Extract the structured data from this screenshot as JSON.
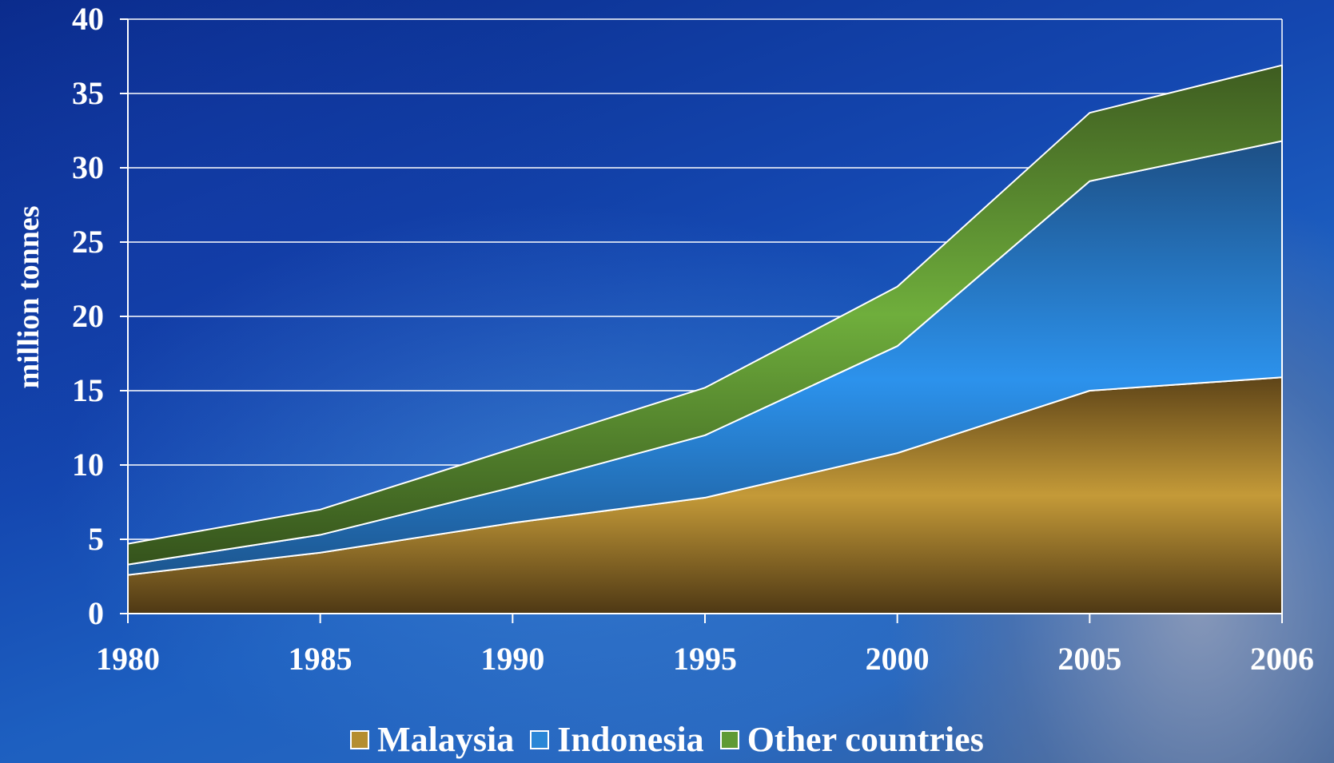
{
  "chart_data": {
    "type": "area",
    "stacked": true,
    "x": [
      "1980",
      "1985",
      "1990",
      "1995",
      "2000",
      "2005",
      "2006"
    ],
    "ylabel": "million tonnes",
    "xlabel": "",
    "title": "",
    "ylim": [
      0,
      40
    ],
    "yticks": [
      "0",
      "5",
      "10",
      "15",
      "20",
      "25",
      "30",
      "35",
      "40"
    ],
    "grid": true,
    "legend_position": "bottom",
    "series": [
      {
        "name": "Malaysia",
        "values": [
          2.6,
          4.1,
          6.1,
          7.8,
          10.8,
          15.0,
          15.9
        ],
        "color": "#b58e30"
      },
      {
        "name": "Indonesia",
        "values": [
          0.7,
          1.2,
          2.4,
          4.2,
          7.2,
          14.1,
          15.9
        ],
        "color": "#2a86d6"
      },
      {
        "name": "Other countries",
        "values": [
          1.4,
          1.7,
          2.6,
          3.2,
          4.0,
          4.6,
          5.1
        ],
        "color": "#5f9a35"
      }
    ]
  }
}
